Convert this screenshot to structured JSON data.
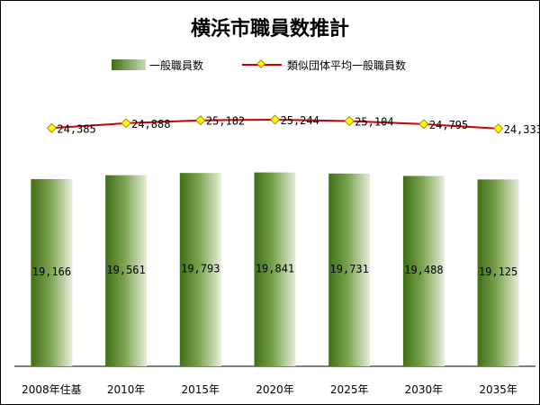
{
  "chart_data": {
    "type": "bar",
    "title": "横浜市職員数推計",
    "categories": [
      "2008年住基",
      "2010年",
      "2015年",
      "2020年",
      "2025年",
      "2030年",
      "2035年"
    ],
    "series": [
      {
        "name": "一般職員数",
        "type": "bar",
        "values": [
          19166,
          19561,
          19793,
          19841,
          19731,
          19488,
          19125
        ],
        "labels": [
          "19,166",
          "19,561",
          "19,793",
          "19,841",
          "19,731",
          "19,488",
          "19,125"
        ],
        "color": "#4a7a1e"
      },
      {
        "name": "類似団体平均一般職員数",
        "type": "line",
        "values": [
          24385,
          24888,
          25182,
          25244,
          25104,
          24795,
          24333
        ],
        "labels": [
          "24,385",
          "24,888",
          "25,182",
          "25,244",
          "25,104",
          "24,795",
          "24,333"
        ],
        "color": "#cc0000",
        "marker_color": "#ffff00"
      }
    ],
    "legend_position": "top",
    "grid": false
  }
}
